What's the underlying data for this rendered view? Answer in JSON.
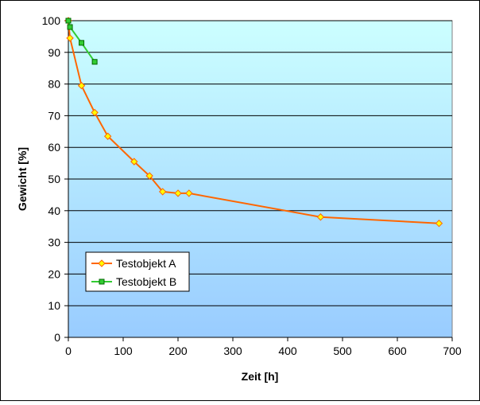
{
  "chart_data": {
    "type": "line",
    "xlabel": "Zeit [h]",
    "ylabel": "Gewicht [%]",
    "xlim": [
      0,
      700
    ],
    "ylim": [
      0,
      100
    ],
    "xticks": [
      0,
      100,
      200,
      300,
      400,
      500,
      600,
      700
    ],
    "yticks": [
      0,
      10,
      20,
      30,
      40,
      50,
      60,
      70,
      80,
      90,
      100
    ],
    "grid": "horizontal",
    "legend_position": "lower-left",
    "background": {
      "top": "#ccffff",
      "bottom": "#99ccff"
    },
    "series": [
      {
        "name": "Testobjekt A",
        "color": "#ff6600",
        "marker": "diamond",
        "marker_color": "#ffff00",
        "x": [
          0,
          3,
          24,
          48,
          72,
          120,
          148,
          172,
          200,
          220,
          460,
          676
        ],
        "y": [
          100,
          94.5,
          79.5,
          71,
          63.5,
          55.5,
          51,
          46,
          45.5,
          45.5,
          38,
          36
        ]
      },
      {
        "name": "Testobjekt B",
        "color": "#33cc33",
        "marker": "square",
        "marker_color": "#33cc33",
        "x": [
          0,
          3,
          24,
          48
        ],
        "y": [
          100,
          98,
          93,
          87
        ]
      }
    ]
  }
}
